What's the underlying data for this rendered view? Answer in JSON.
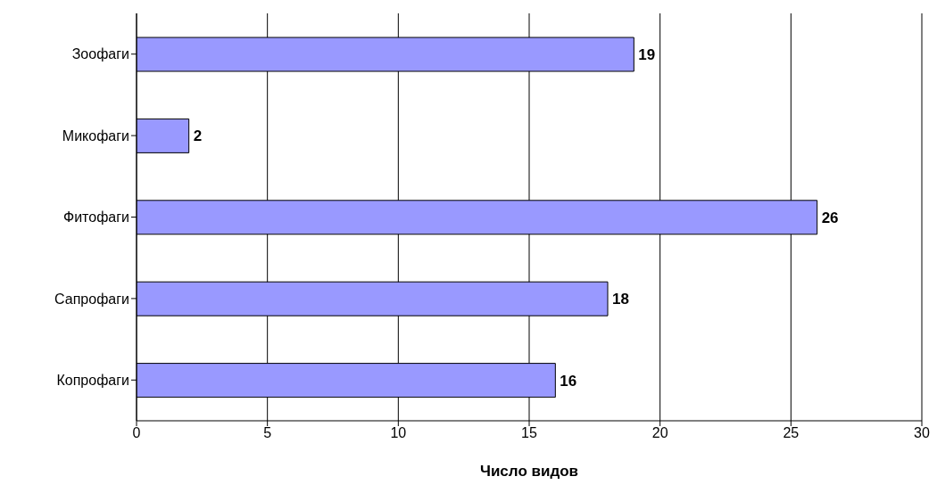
{
  "chart_data": {
    "type": "bar",
    "orientation": "horizontal",
    "xlabel": "Число видов",
    "categories": [
      "Зоофаги",
      "Микофаги",
      "Фитофаги",
      "Сапрофаги",
      "Копрофаги"
    ],
    "values": [
      19,
      2,
      26,
      18,
      16
    ],
    "color": "#9999ff",
    "xlim": [
      0,
      30
    ],
    "xticks": [
      0,
      5,
      10,
      15,
      20,
      25,
      30
    ],
    "grid": "x",
    "data_labels": true
  }
}
